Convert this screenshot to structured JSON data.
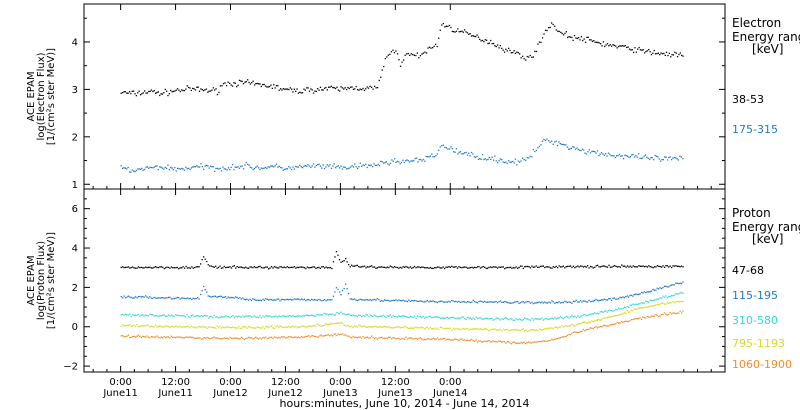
{
  "chart_data": [
    {
      "type": "scatter",
      "panel": "top",
      "ylabel_lines": [
        "ACE EPAM",
        "log(Electron Flux)",
        "[1/(cm²s ster MeV)]"
      ],
      "ylim": [
        0.9,
        4.8
      ],
      "yticks": [
        1,
        2,
        3,
        4
      ],
      "ytick_labels": [
        "1",
        "2",
        "3",
        "4"
      ],
      "legend_title_lines": [
        "Electron",
        "Energy range",
        "[keV]"
      ],
      "series": [
        {
          "name": "38-53",
          "color": "#000000",
          "points": [
            [
              0,
              2.95
            ],
            [
              3,
              2.92
            ],
            [
              6,
              2.97
            ],
            [
              9,
              2.93
            ],
            [
              12,
              2.99
            ],
            [
              15,
              3.02
            ],
            [
              18,
              3.0
            ],
            [
              21,
              2.98
            ],
            [
              22,
              3.12
            ],
            [
              24,
              3.14
            ],
            [
              27,
              3.15
            ],
            [
              30,
              3.11
            ],
            [
              33,
              3.08
            ],
            [
              36,
              3.0
            ],
            [
              39,
              2.98
            ],
            [
              42,
              3.01
            ],
            [
              45,
              3.03
            ],
            [
              48,
              3.02
            ],
            [
              51,
              3.05
            ],
            [
              54,
              3.03
            ],
            [
              56,
              3.05
            ],
            [
              57,
              3.4
            ],
            [
              58,
              3.7
            ],
            [
              60,
              3.85
            ],
            [
              61,
              3.55
            ],
            [
              63,
              3.8
            ],
            [
              65,
              3.7
            ],
            [
              67,
              3.85
            ],
            [
              69,
              3.95
            ],
            [
              70,
              4.4
            ],
            [
              72,
              4.3
            ],
            [
              75,
              4.2
            ],
            [
              78,
              4.1
            ],
            [
              81,
              4.0
            ],
            [
              84,
              3.85
            ],
            [
              87,
              3.75
            ],
            [
              89,
              3.65
            ],
            [
              91,
              3.9
            ],
            [
              93,
              4.3
            ],
            [
              94,
              4.4
            ],
            [
              96,
              4.2
            ],
            [
              99,
              4.1
            ],
            [
              102,
              4.05
            ],
            [
              105,
              3.98
            ],
            [
              108,
              3.92
            ],
            [
              111,
              3.88
            ],
            [
              114,
              3.82
            ],
            [
              117,
              3.78
            ],
            [
              120,
              3.75
            ],
            [
              123,
              3.72
            ]
          ]
        },
        {
          "name": "175-315",
          "color": "#1f78c8",
          "points": [
            [
              0,
              1.35
            ],
            [
              3,
              1.3
            ],
            [
              6,
              1.35
            ],
            [
              9,
              1.38
            ],
            [
              12,
              1.33
            ],
            [
              15,
              1.36
            ],
            [
              18,
              1.38
            ],
            [
              21,
              1.35
            ],
            [
              24,
              1.37
            ],
            [
              27,
              1.4
            ],
            [
              30,
              1.36
            ],
            [
              33,
              1.38
            ],
            [
              36,
              1.35
            ],
            [
              39,
              1.37
            ],
            [
              42,
              1.4
            ],
            [
              45,
              1.38
            ],
            [
              48,
              1.36
            ],
            [
              51,
              1.38
            ],
            [
              54,
              1.4
            ],
            [
              57,
              1.45
            ],
            [
              60,
              1.5
            ],
            [
              63,
              1.5
            ],
            [
              66,
              1.52
            ],
            [
              69,
              1.65
            ],
            [
              70,
              1.85
            ],
            [
              72,
              1.75
            ],
            [
              75,
              1.65
            ],
            [
              78,
              1.6
            ],
            [
              81,
              1.55
            ],
            [
              84,
              1.5
            ],
            [
              87,
              1.48
            ],
            [
              89,
              1.55
            ],
            [
              91,
              1.8
            ],
            [
              93,
              1.95
            ],
            [
              95,
              1.9
            ],
            [
              98,
              1.8
            ],
            [
              101,
              1.72
            ],
            [
              104,
              1.68
            ],
            [
              107,
              1.63
            ],
            [
              110,
              1.6
            ],
            [
              113,
              1.58
            ],
            [
              116,
              1.56
            ],
            [
              119,
              1.54
            ],
            [
              122,
              1.55
            ],
            [
              123,
              1.52
            ]
          ]
        }
      ]
    },
    {
      "type": "scatter",
      "panel": "bottom",
      "ylabel_lines": [
        "ACE EPAM",
        "log(Proton Flux)",
        "[1/(cm²s ster MeV)]"
      ],
      "ylim": [
        -2.3,
        7.0
      ],
      "yticks": [
        -2,
        0,
        2,
        4,
        6
      ],
      "ytick_labels": [
        "−2",
        "0",
        "2",
        "4",
        "6"
      ],
      "legend_title_lines": [
        "Proton",
        "Energy range",
        "[keV]"
      ],
      "series": [
        {
          "name": "47-68",
          "color": "#000000",
          "points": [
            [
              0,
              3.05
            ],
            [
              10,
              3.05
            ],
            [
              17,
              3.05
            ],
            [
              18,
              3.6
            ],
            [
              19,
              3.2
            ],
            [
              20,
              3.05
            ],
            [
              40,
              3.05
            ],
            [
              46,
              3.05
            ],
            [
              47,
              3.8
            ],
            [
              48,
              3.3
            ],
            [
              49,
              3.5
            ],
            [
              50,
              3.1
            ],
            [
              60,
              3.05
            ],
            [
              80,
              3.05
            ],
            [
              100,
              3.08
            ],
            [
              123,
              3.1
            ]
          ]
        },
        {
          "name": "115-195",
          "color": "#1f78c8",
          "points": [
            [
              0,
              1.55
            ],
            [
              10,
              1.5
            ],
            [
              17,
              1.45
            ],
            [
              18,
              2.1
            ],
            [
              19,
              1.6
            ],
            [
              30,
              1.4
            ],
            [
              40,
              1.4
            ],
            [
              46,
              1.4
            ],
            [
              47,
              2.0
            ],
            [
              48,
              1.7
            ],
            [
              49,
              2.2
            ],
            [
              50,
              1.45
            ],
            [
              60,
              1.35
            ],
            [
              70,
              1.3
            ],
            [
              80,
              1.3
            ],
            [
              90,
              1.25
            ],
            [
              100,
              1.3
            ],
            [
              108,
              1.45
            ],
            [
              113,
              1.7
            ],
            [
              118,
              2.0
            ],
            [
              123,
              2.3
            ]
          ]
        },
        {
          "name": "310-580",
          "color": "#33d6d6",
          "points": [
            [
              0,
              0.65
            ],
            [
              10,
              0.6
            ],
            [
              20,
              0.55
            ],
            [
              30,
              0.55
            ],
            [
              40,
              0.58
            ],
            [
              48,
              0.7
            ],
            [
              50,
              0.6
            ],
            [
              60,
              0.55
            ],
            [
              70,
              0.5
            ],
            [
              80,
              0.45
            ],
            [
              90,
              0.4
            ],
            [
              100,
              0.55
            ],
            [
              108,
              0.9
            ],
            [
              113,
              1.2
            ],
            [
              118,
              1.5
            ],
            [
              123,
              1.75
            ]
          ]
        },
        {
          "name": "795-1193",
          "color": "#d8d820",
          "points": [
            [
              0,
              0.1
            ],
            [
              10,
              0.05
            ],
            [
              20,
              0.0
            ],
            [
              30,
              0.0
            ],
            [
              40,
              0.05
            ],
            [
              48,
              0.2
            ],
            [
              50,
              0.05
            ],
            [
              60,
              0.0
            ],
            [
              70,
              -0.05
            ],
            [
              80,
              -0.1
            ],
            [
              90,
              -0.15
            ],
            [
              100,
              0.15
            ],
            [
              108,
              0.6
            ],
            [
              113,
              0.95
            ],
            [
              118,
              1.2
            ],
            [
              123,
              1.35
            ]
          ]
        },
        {
          "name": "1060-1900",
          "color": "#f08c28",
          "points": [
            [
              0,
              -0.45
            ],
            [
              10,
              -0.5
            ],
            [
              20,
              -0.55
            ],
            [
              30,
              -0.55
            ],
            [
              40,
              -0.5
            ],
            [
              48,
              -0.35
            ],
            [
              50,
              -0.5
            ],
            [
              60,
              -0.55
            ],
            [
              70,
              -0.6
            ],
            [
              80,
              -0.7
            ],
            [
              88,
              -0.8
            ],
            [
              95,
              -0.6
            ],
            [
              100,
              -0.2
            ],
            [
              108,
              0.2
            ],
            [
              113,
              0.45
            ],
            [
              118,
              0.65
            ],
            [
              123,
              0.8
            ]
          ]
        }
      ]
    }
  ],
  "x_axis": {
    "hours_range": [
      -8,
      132
    ],
    "xlabel": "hours:minutes, June 10, 2014 - June 14, 2014",
    "ticks": [
      {
        "hour": 0,
        "time": "0:00",
        "date": "June11"
      },
      {
        "hour": 12,
        "time": "12:00",
        "date": "June11"
      },
      {
        "hour": 24,
        "time": "0:00",
        "date": "June12"
      },
      {
        "hour": 36,
        "time": "12:00",
        "date": "June12"
      },
      {
        "hour": 48,
        "time": "0:00",
        "date": "June13"
      },
      {
        "hour": 60,
        "time": "12:00",
        "date": "June13"
      },
      {
        "hour": 72,
        "time": "0:00",
        "date": "June14"
      }
    ]
  }
}
